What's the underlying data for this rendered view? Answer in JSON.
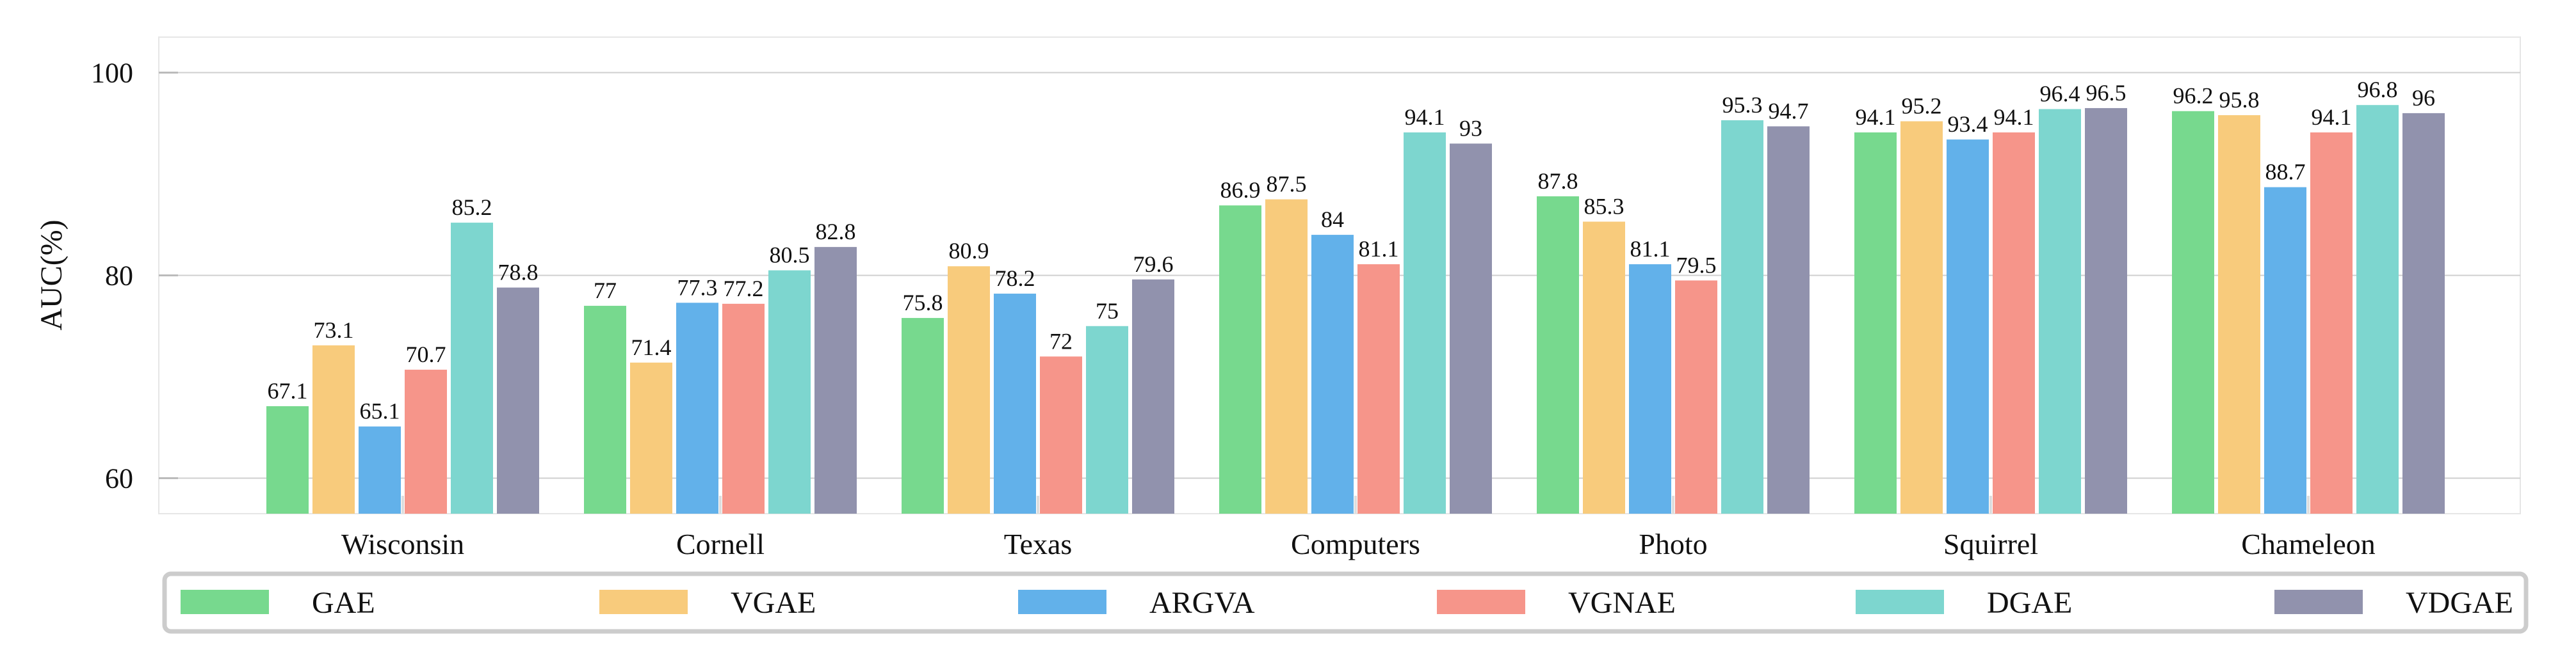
{
  "chart_data": {
    "type": "bar",
    "title": "",
    "xlabel": "",
    "ylabel": "AUC(%)",
    "ylim": [
      56.5,
      103.5
    ],
    "yticks": [
      60,
      80,
      100
    ],
    "grid": true,
    "legend_position": "bottom",
    "categories": [
      "Wisconsin",
      "Cornell",
      "Texas",
      "Computers",
      "Photo",
      "Squirrel",
      "Chameleon"
    ],
    "series": [
      {
        "name": "GAE",
        "color": "#77d98e",
        "values": [
          67.1,
          77,
          75.8,
          86.9,
          87.8,
          94.1,
          96.2
        ]
      },
      {
        "name": "VGAE",
        "color": "#f8cb7c",
        "values": [
          73.1,
          71.4,
          80.9,
          87.5,
          85.3,
          95.2,
          95.8
        ]
      },
      {
        "name": "ARGVA",
        "color": "#62b1ea",
        "values": [
          65.1,
          77.3,
          78.2,
          84,
          81.1,
          93.4,
          88.7
        ]
      },
      {
        "name": "VGNAE",
        "color": "#f6958a",
        "values": [
          70.7,
          77.2,
          72,
          81.1,
          79.5,
          94.1,
          94.1
        ]
      },
      {
        "name": "DGAE",
        "color": "#7dd6cf",
        "values": [
          85.2,
          80.5,
          75,
          94.1,
          95.3,
          96.4,
          96.8
        ]
      },
      {
        "name": "VDGAE",
        "color": "#9192ad",
        "values": [
          78.8,
          82.8,
          79.6,
          93,
          94.7,
          96.5,
          96
        ]
      }
    ]
  }
}
